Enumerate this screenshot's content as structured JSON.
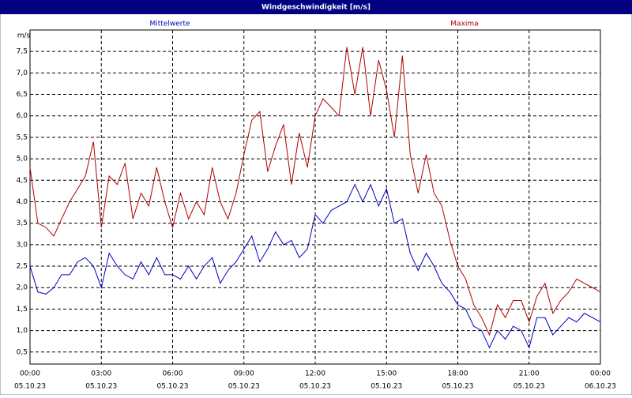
{
  "chart_data": {
    "type": "line",
    "title": "Windgeschwindigkeit [m/s]",
    "ylabel": "m/s",
    "x": [
      0,
      0.33,
      0.67,
      1,
      1.33,
      1.67,
      2,
      2.33,
      2.67,
      3,
      3.33,
      3.67,
      4,
      4.33,
      4.67,
      5,
      5.33,
      5.67,
      6,
      6.33,
      6.67,
      7,
      7.33,
      7.67,
      8,
      8.33,
      8.67,
      9,
      9.33,
      9.67,
      10,
      10.33,
      10.67,
      11,
      11.33,
      11.67,
      12,
      12.33,
      12.67,
      13,
      13.33,
      13.67,
      14,
      14.33,
      14.67,
      15,
      15.33,
      15.67,
      16,
      16.33,
      16.67,
      17,
      17.33,
      17.67,
      18,
      18.33,
      18.67,
      19,
      19.33,
      19.67,
      20,
      20.33,
      20.67,
      21,
      21.33,
      21.67,
      22,
      22.33,
      22.67,
      23,
      23.33,
      23.67,
      24
    ],
    "series": [
      {
        "name": "Mittelwerte",
        "color": "#0000c0",
        "values": [
          2.5,
          1.9,
          1.85,
          2.0,
          2.3,
          2.3,
          2.6,
          2.7,
          2.5,
          2.0,
          2.8,
          2.5,
          2.3,
          2.2,
          2.6,
          2.3,
          2.7,
          2.3,
          2.3,
          2.2,
          2.5,
          2.2,
          2.5,
          2.7,
          2.1,
          2.4,
          2.6,
          2.9,
          3.2,
          2.6,
          2.9,
          3.3,
          3.0,
          3.1,
          2.7,
          2.9,
          3.7,
          3.5,
          3.8,
          3.9,
          4.0,
          4.4,
          4.0,
          4.4,
          3.9,
          4.3,
          3.5,
          3.6,
          2.8,
          2.4,
          2.8,
          2.5,
          2.1,
          1.9,
          1.6,
          1.5,
          1.1,
          1.0,
          0.6,
          1.0,
          0.8,
          1.1,
          1.0,
          0.6,
          1.3,
          1.3,
          0.9,
          1.1,
          1.3,
          1.2,
          1.4,
          1.3,
          1.2
        ]
      },
      {
        "name": "Maxima",
        "color": "#b00000",
        "values": [
          4.8,
          3.5,
          3.4,
          3.2,
          3.6,
          4.0,
          4.3,
          4.6,
          5.4,
          3.4,
          4.6,
          4.4,
          4.9,
          3.6,
          4.2,
          3.9,
          4.8,
          4.0,
          3.4,
          4.2,
          3.6,
          4.0,
          3.7,
          4.8,
          4.0,
          3.6,
          4.2,
          5.1,
          5.9,
          6.1,
          4.7,
          5.3,
          5.8,
          4.4,
          5.6,
          4.8,
          6.0,
          6.4,
          6.2,
          6.0,
          7.6,
          6.5,
          7.6,
          6.0,
          7.3,
          6.6,
          5.5,
          7.4,
          5.1,
          4.2,
          5.1,
          4.2,
          3.9,
          3.1,
          2.5,
          2.2,
          1.6,
          1.3,
          0.9,
          1.6,
          1.3,
          1.7,
          1.7,
          1.2,
          1.8,
          2.1,
          1.4,
          1.7,
          1.9,
          2.2,
          2.1,
          2.0,
          1.9
        ]
      }
    ],
    "xlim": [
      0,
      24
    ],
    "ylim": [
      0.22,
      8.0
    ],
    "grid": true,
    "xticks": [
      {
        "value": 0,
        "label": "00:00",
        "date": "05.10.23"
      },
      {
        "value": 3,
        "label": "03:00",
        "date": "05.10.23"
      },
      {
        "value": 6,
        "label": "06:00",
        "date": "05.10.23"
      },
      {
        "value": 9,
        "label": "09:00",
        "date": "05.10.23"
      },
      {
        "value": 12,
        "label": "12:00",
        "date": "05.10.23"
      },
      {
        "value": 15,
        "label": "15:00",
        "date": "05.10.23"
      },
      {
        "value": 18,
        "label": "18:00",
        "date": "05.10.23"
      },
      {
        "value": 21,
        "label": "21:00",
        "date": "05.10.23"
      },
      {
        "value": 24,
        "label": "00:00",
        "date": "06.10.23"
      }
    ],
    "yticks": [
      {
        "value": 0.5,
        "label": "0,5"
      },
      {
        "value": 1.0,
        "label": "1,0"
      },
      {
        "value": 1.5,
        "label": "1,5"
      },
      {
        "value": 2.0,
        "label": "2,0"
      },
      {
        "value": 2.5,
        "label": "2,5"
      },
      {
        "value": 3.0,
        "label": "3,0"
      },
      {
        "value": 3.5,
        "label": "3,5"
      },
      {
        "value": 4.0,
        "label": "4,0"
      },
      {
        "value": 4.5,
        "label": "4,5"
      },
      {
        "value": 5.0,
        "label": "5,0"
      },
      {
        "value": 5.5,
        "label": "5,5"
      },
      {
        "value": 6.0,
        "label": "6,0"
      },
      {
        "value": 6.5,
        "label": "6,5"
      },
      {
        "value": 7.0,
        "label": "7,0"
      },
      {
        "value": 7.5,
        "label": "7,5"
      }
    ]
  }
}
